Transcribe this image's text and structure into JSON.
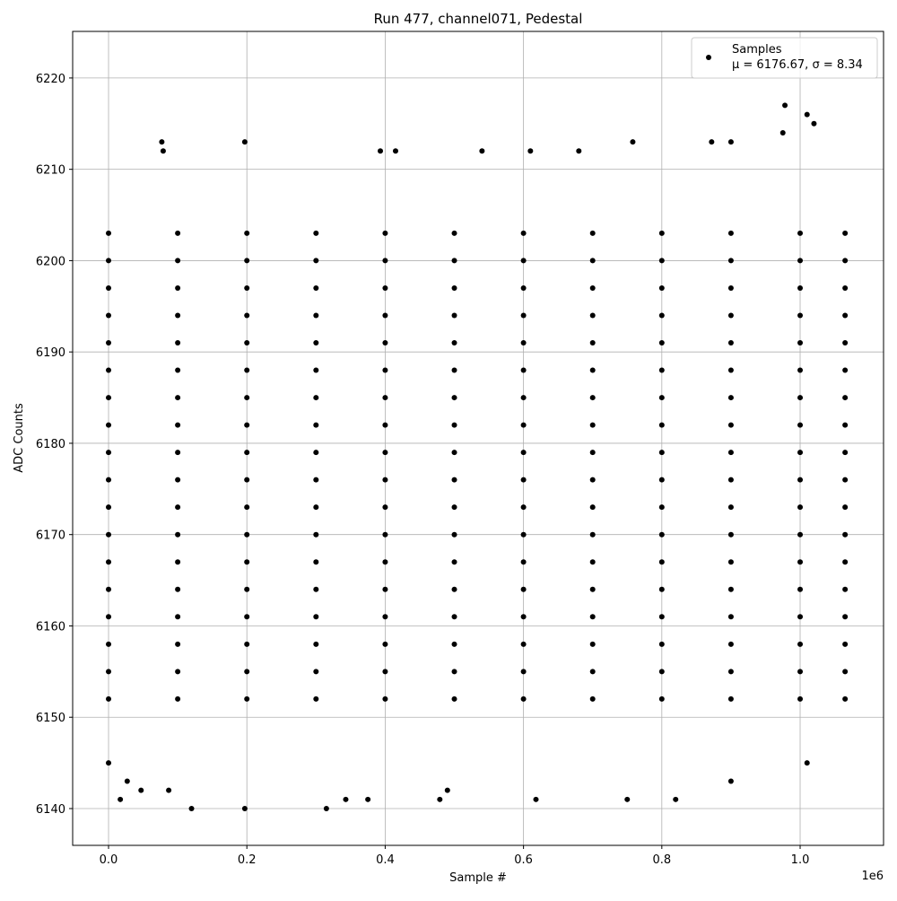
{
  "chart_data": {
    "type": "scatter",
    "title": "Run 477, channel071, Pedestal",
    "x_label": "Sample #",
    "y_label": "ADC Counts",
    "x_offset_label": "1e6",
    "legend_note": "μ = 6176.67, σ = 8.34",
    "legend": "upper right",
    "grid": true,
    "xlim": [
      -51900,
      1120600
    ],
    "ylim": [
      6135.97,
      6225.1
    ],
    "xticks": [
      {
        "value": 0,
        "label": "0.0"
      },
      {
        "value": 200000,
        "label": "0.2"
      },
      {
        "value": 400000,
        "label": "0.4"
      },
      {
        "value": 600000,
        "label": "0.6"
      },
      {
        "value": 800000,
        "label": "0.8"
      },
      {
        "value": 1000000,
        "label": "1.0"
      }
    ],
    "yticks": [
      6140,
      6150,
      6160,
      6170,
      6180,
      6190,
      6200,
      6210,
      6220
    ],
    "series": [
      {
        "name": "Samples",
        "color": "#000000",
        "x": [
          0,
          100000,
          200000,
          300000,
          400000,
          500000,
          600000,
          700000,
          800000,
          900000,
          1000000,
          1065000,
          0,
          100000,
          200000,
          300000,
          400000,
          500000,
          600000,
          700000,
          800000,
          900000,
          1000000,
          1065000,
          0,
          100000,
          200000,
          300000,
          400000,
          500000,
          600000,
          700000,
          800000,
          900000,
          1000000,
          1065000,
          0,
          100000,
          200000,
          300000,
          400000,
          500000,
          600000,
          700000,
          800000,
          900000,
          1000000,
          1065000,
          0,
          100000,
          200000,
          300000,
          400000,
          500000,
          600000,
          700000,
          800000,
          900000,
          1000000,
          1065000,
          0,
          100000,
          200000,
          300000,
          400000,
          500000,
          600000,
          700000,
          800000,
          900000,
          1000000,
          1065000,
          0,
          100000,
          200000,
          300000,
          400000,
          500000,
          600000,
          700000,
          800000,
          900000,
          1000000,
          1065000,
          0,
          100000,
          200000,
          300000,
          400000,
          500000,
          600000,
          700000,
          800000,
          900000,
          1000000,
          1065000,
          0,
          100000,
          200000,
          300000,
          400000,
          500000,
          600000,
          700000,
          800000,
          900000,
          1000000,
          1065000,
          0,
          100000,
          200000,
          300000,
          400000,
          500000,
          600000,
          700000,
          800000,
          900000,
          1000000,
          1065000,
          0,
          100000,
          200000,
          300000,
          400000,
          500000,
          600000,
          700000,
          800000,
          900000,
          1000000,
          1065000,
          0,
          100000,
          200000,
          300000,
          400000,
          500000,
          600000,
          700000,
          800000,
          900000,
          1000000,
          1065000,
          0,
          100000,
          200000,
          300000,
          400000,
          500000,
          600000,
          700000,
          800000,
          900000,
          1000000,
          1065000,
          0,
          100000,
          200000,
          300000,
          400000,
          500000,
          600000,
          700000,
          800000,
          900000,
          1000000,
          1065000,
          0,
          100000,
          200000,
          300000,
          400000,
          500000,
          600000,
          700000,
          800000,
          900000,
          1000000,
          1065000,
          0,
          100000,
          200000,
          300000,
          400000,
          500000,
          600000,
          700000,
          800000,
          900000,
          1000000,
          1065000,
          0,
          100000,
          200000,
          300000,
          400000,
          500000,
          600000,
          700000,
          800000,
          900000,
          1000000,
          1065000,
          0,
          100000,
          200000,
          300000,
          400000,
          500000,
          600000,
          700000,
          800000,
          900000,
          1000000,
          1065000,
          0,
          17000,
          27000,
          47000,
          77000,
          79000,
          87000,
          120000,
          197000,
          197000,
          315000,
          343000,
          375000,
          393000,
          415000,
          479000,
          490000,
          540000,
          610000,
          618000,
          680000,
          758000,
          750000,
          820000,
          872000,
          900000,
          900000,
          978000,
          1010000,
          1020000,
          1010000,
          975000
        ],
        "values": [
          6152,
          6152,
          6152,
          6152,
          6152,
          6152,
          6152,
          6152,
          6152,
          6152,
          6152,
          6152,
          6155,
          6155,
          6155,
          6155,
          6155,
          6155,
          6155,
          6155,
          6155,
          6155,
          6155,
          6155,
          6158,
          6158,
          6158,
          6158,
          6158,
          6158,
          6158,
          6158,
          6158,
          6158,
          6158,
          6158,
          6161,
          6161,
          6161,
          6161,
          6161,
          6161,
          6161,
          6161,
          6161,
          6161,
          6161,
          6161,
          6164,
          6164,
          6164,
          6164,
          6164,
          6164,
          6164,
          6164,
          6164,
          6164,
          6164,
          6164,
          6167,
          6167,
          6167,
          6167,
          6167,
          6167,
          6167,
          6167,
          6167,
          6167,
          6167,
          6167,
          6170,
          6170,
          6170,
          6170,
          6170,
          6170,
          6170,
          6170,
          6170,
          6170,
          6170,
          6170,
          6173,
          6173,
          6173,
          6173,
          6173,
          6173,
          6173,
          6173,
          6173,
          6173,
          6173,
          6173,
          6176,
          6176,
          6176,
          6176,
          6176,
          6176,
          6176,
          6176,
          6176,
          6176,
          6176,
          6176,
          6179,
          6179,
          6179,
          6179,
          6179,
          6179,
          6179,
          6179,
          6179,
          6179,
          6179,
          6179,
          6182,
          6182,
          6182,
          6182,
          6182,
          6182,
          6182,
          6182,
          6182,
          6182,
          6182,
          6182,
          6185,
          6185,
          6185,
          6185,
          6185,
          6185,
          6185,
          6185,
          6185,
          6185,
          6185,
          6185,
          6188,
          6188,
          6188,
          6188,
          6188,
          6188,
          6188,
          6188,
          6188,
          6188,
          6188,
          6188,
          6191,
          6191,
          6191,
          6191,
          6191,
          6191,
          6191,
          6191,
          6191,
          6191,
          6191,
          6191,
          6194,
          6194,
          6194,
          6194,
          6194,
          6194,
          6194,
          6194,
          6194,
          6194,
          6194,
          6194,
          6197,
          6197,
          6197,
          6197,
          6197,
          6197,
          6197,
          6197,
          6197,
          6197,
          6197,
          6197,
          6200,
          6200,
          6200,
          6200,
          6200,
          6200,
          6200,
          6200,
          6200,
          6200,
          6200,
          6200,
          6203,
          6203,
          6203,
          6203,
          6203,
          6203,
          6203,
          6203,
          6203,
          6203,
          6203,
          6203,
          6145,
          6141,
          6143,
          6142,
          6213,
          6212,
          6142,
          6140,
          6213,
          6140,
          6140,
          6141,
          6141,
          6212,
          6212,
          6141,
          6142,
          6212,
          6212,
          6141,
          6212,
          6213,
          6141,
          6141,
          6213,
          6213,
          6143,
          6217,
          6216,
          6215,
          6145,
          6214
        ]
      }
    ]
  }
}
